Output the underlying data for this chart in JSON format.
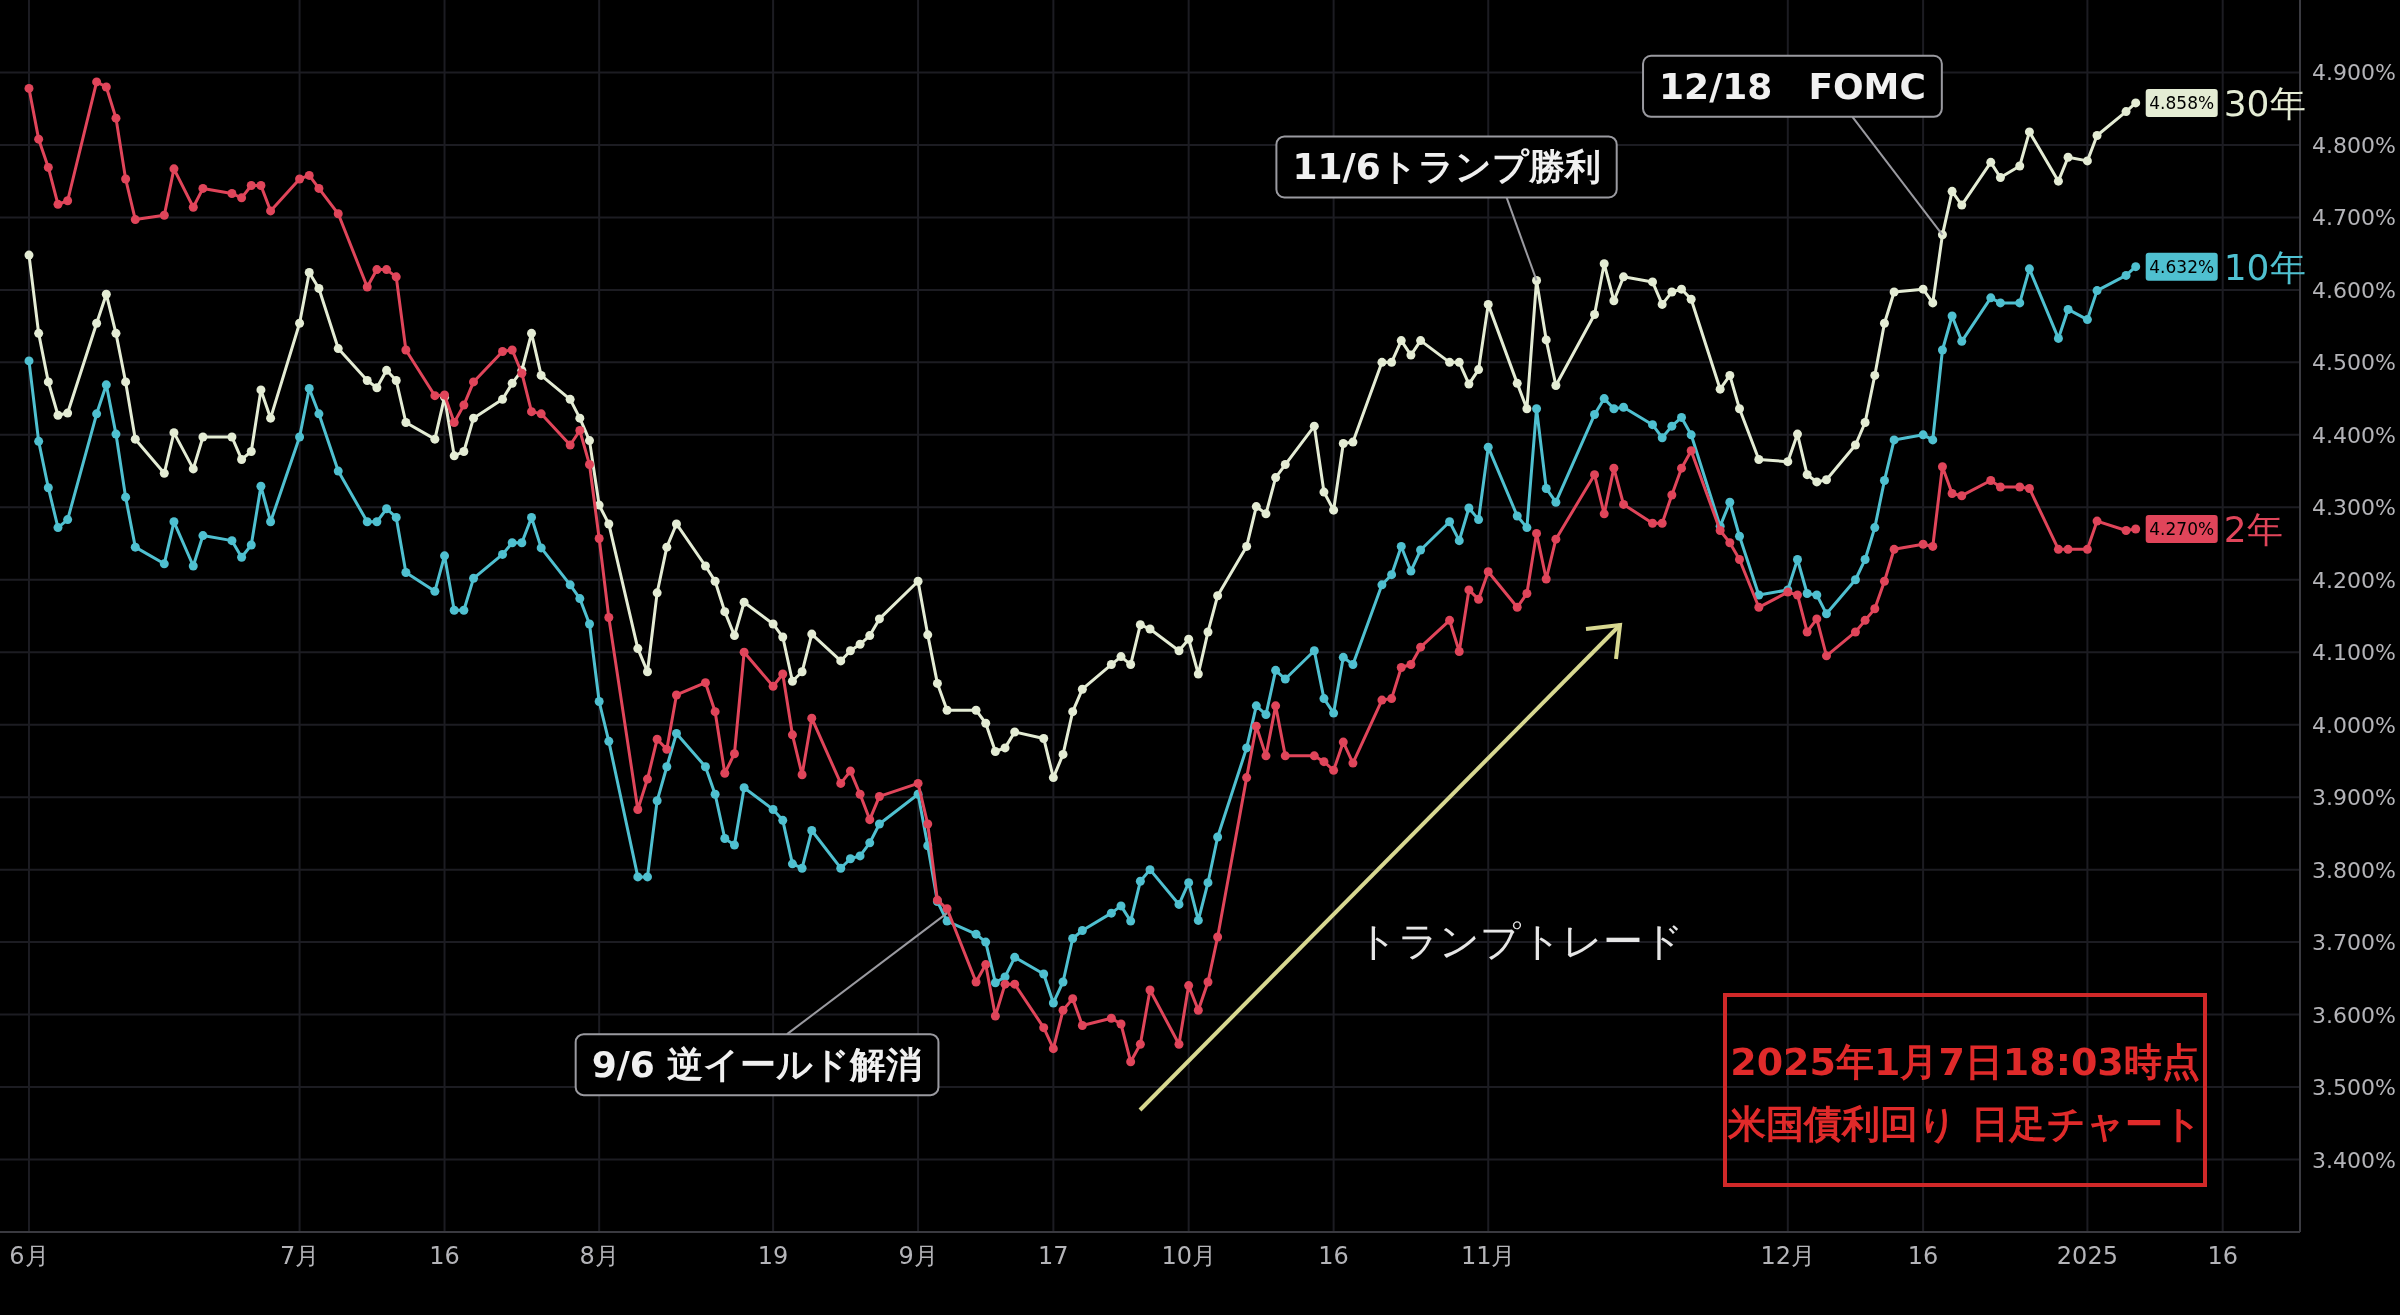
{
  "chart_data": {
    "type": "line",
    "marker": "circle",
    "grid": true,
    "legend": "right",
    "xlim": [
      "2024-05-31",
      "2025-01-24"
    ],
    "xticks": [
      {
        "value": "2024-06-03",
        "label": "6月"
      },
      {
        "value": "2024-07-01",
        "label": "7月"
      },
      {
        "value": "2024-07-16",
        "label": "16"
      },
      {
        "value": "2024-08-01",
        "label": "8月"
      },
      {
        "value": "2024-08-19",
        "label": "19"
      },
      {
        "value": "2024-09-03",
        "label": "9月"
      },
      {
        "value": "2024-09-17",
        "label": "17"
      },
      {
        "value": "2024-10-01",
        "label": "10月"
      },
      {
        "value": "2024-10-16",
        "label": "16"
      },
      {
        "value": "2024-11-01",
        "label": "11月"
      },
      {
        "value": "2024-12-02",
        "label": "12月"
      },
      {
        "value": "2024-12-16",
        "label": "16"
      },
      {
        "value": "2025-01-02",
        "label": "2025"
      },
      {
        "value": "2025-01-16",
        "label": "16"
      }
    ],
    "ylim": [
      3.3,
      5.0
    ],
    "yticks": [
      {
        "value": 3.4,
        "label": "3.400%"
      },
      {
        "value": 3.5,
        "label": "3.500%"
      },
      {
        "value": 3.6,
        "label": "3.600%"
      },
      {
        "value": 3.7,
        "label": "3.700%"
      },
      {
        "value": 3.8,
        "label": "3.800%"
      },
      {
        "value": 3.9,
        "label": "3.900%"
      },
      {
        "value": 4.0,
        "label": "4.000%"
      },
      {
        "value": 4.1,
        "label": "4.100%"
      },
      {
        "value": 4.2,
        "label": "4.200%"
      },
      {
        "value": 4.3,
        "label": "4.300%"
      },
      {
        "value": 4.4,
        "label": "4.400%"
      },
      {
        "value": 4.5,
        "label": "4.500%"
      },
      {
        "value": 4.6,
        "label": "4.600%"
      },
      {
        "value": 4.7,
        "label": "4.700%"
      },
      {
        "value": 4.8,
        "label": "4.800%"
      },
      {
        "value": 4.9,
        "label": "4.900%"
      }
    ],
    "x": [
      "2024-06-03",
      "2024-06-04",
      "2024-06-05",
      "2024-06-06",
      "2024-06-07",
      "2024-06-10",
      "2024-06-11",
      "2024-06-12",
      "2024-06-13",
      "2024-06-14",
      "2024-06-17",
      "2024-06-18",
      "2024-06-20",
      "2024-06-21",
      "2024-06-24",
      "2024-06-25",
      "2024-06-26",
      "2024-06-27",
      "2024-06-28",
      "2024-07-01",
      "2024-07-02",
      "2024-07-03",
      "2024-07-05",
      "2024-07-08",
      "2024-07-09",
      "2024-07-10",
      "2024-07-11",
      "2024-07-12",
      "2024-07-15",
      "2024-07-16",
      "2024-07-17",
      "2024-07-18",
      "2024-07-19",
      "2024-07-22",
      "2024-07-23",
      "2024-07-24",
      "2024-07-25",
      "2024-07-26",
      "2024-07-29",
      "2024-07-30",
      "2024-07-31",
      "2024-08-01",
      "2024-08-02",
      "2024-08-05",
      "2024-08-06",
      "2024-08-07",
      "2024-08-08",
      "2024-08-09",
      "2024-08-12",
      "2024-08-13",
      "2024-08-14",
      "2024-08-15",
      "2024-08-16",
      "2024-08-19",
      "2024-08-20",
      "2024-08-21",
      "2024-08-22",
      "2024-08-23",
      "2024-08-26",
      "2024-08-27",
      "2024-08-28",
      "2024-08-29",
      "2024-08-30",
      "2024-09-03",
      "2024-09-04",
      "2024-09-05",
      "2024-09-06",
      "2024-09-09",
      "2024-09-10",
      "2024-09-11",
      "2024-09-12",
      "2024-09-13",
      "2024-09-16",
      "2024-09-17",
      "2024-09-18",
      "2024-09-19",
      "2024-09-20",
      "2024-09-23",
      "2024-09-24",
      "2024-09-25",
      "2024-09-26",
      "2024-09-27",
      "2024-09-30",
      "2024-10-01",
      "2024-10-02",
      "2024-10-03",
      "2024-10-04",
      "2024-10-07",
      "2024-10-08",
      "2024-10-09",
      "2024-10-10",
      "2024-10-11",
      "2024-10-14",
      "2024-10-15",
      "2024-10-16",
      "2024-10-17",
      "2024-10-18",
      "2024-10-21",
      "2024-10-22",
      "2024-10-23",
      "2024-10-24",
      "2024-10-25",
      "2024-10-28",
      "2024-10-29",
      "2024-10-30",
      "2024-10-31",
      "2024-11-01",
      "2024-11-04",
      "2024-11-05",
      "2024-11-06",
      "2024-11-07",
      "2024-11-08",
      "2024-11-12",
      "2024-11-13",
      "2024-11-14",
      "2024-11-15",
      "2024-11-18",
      "2024-11-19",
      "2024-11-20",
      "2024-11-21",
      "2024-11-22",
      "2024-11-25",
      "2024-11-26",
      "2024-11-27",
      "2024-11-29",
      "2024-12-02",
      "2024-12-03",
      "2024-12-04",
      "2024-12-05",
      "2024-12-06",
      "2024-12-09",
      "2024-12-10",
      "2024-12-11",
      "2024-12-12",
      "2024-12-13",
      "2024-12-16",
      "2024-12-17",
      "2024-12-18",
      "2024-12-19",
      "2024-12-20",
      "2024-12-23",
      "2024-12-24",
      "2024-12-26",
      "2024-12-27",
      "2024-12-30",
      "2024-12-31",
      "2025-01-02",
      "2025-01-03",
      "2025-01-06",
      "2025-01-07"
    ],
    "series": [
      {
        "name": "30年",
        "color": "#e4ecd4",
        "value_labels": [
          null,
          null,
          null,
          null,
          null,
          null,
          null,
          null,
          null,
          null,
          null,
          null,
          null,
          null,
          null,
          null,
          null,
          null,
          null,
          null,
          null,
          null,
          null,
          null,
          null,
          null,
          null,
          null,
          null,
          null,
          null,
          null,
          null,
          null,
          null,
          null,
          null,
          null,
          null,
          null,
          null,
          null,
          null,
          null,
          null,
          null,
          null,
          null,
          null,
          null,
          null,
          null,
          null,
          null,
          null,
          null,
          null,
          null,
          null,
          null,
          null,
          null,
          null,
          null,
          null,
          null,
          null,
          null,
          null,
          null,
          null,
          null,
          null,
          null,
          null,
          null,
          null,
          null,
          null,
          null,
          null,
          null,
          null,
          null,
          null,
          null,
          null,
          null,
          null,
          null,
          null,
          null,
          null,
          null,
          null,
          null,
          null,
          null,
          null,
          null,
          null,
          null,
          null,
          null,
          null,
          null,
          null,
          null,
          null,
          null,
          null,
          null,
          null,
          null,
          null,
          null,
          null,
          null,
          null,
          null,
          null,
          null,
          null,
          null,
          null,
          null,
          null,
          null,
          null,
          null,
          null,
          null,
          null,
          null,
          null,
          null,
          null,
          null,
          null,
          null,
          null,
          null,
          null,
          null,
          null,
          null,
          null,
          null,
          null,
          "4.858%"
        ],
        "values": [
          4.648,
          4.54,
          4.473,
          4.427,
          4.43,
          4.554,
          4.594,
          4.54,
          4.473,
          4.394,
          4.347,
          4.403,
          4.353,
          4.397,
          4.397,
          4.366,
          4.377,
          4.462,
          4.423,
          4.554,
          4.624,
          4.602,
          4.519,
          4.475,
          4.465,
          4.489,
          4.475,
          4.417,
          4.394,
          4.452,
          4.371,
          4.377,
          4.423,
          4.449,
          4.471,
          4.489,
          4.54,
          4.482,
          4.449,
          4.423,
          4.392,
          4.303,
          4.277,
          4.105,
          4.073,
          4.182,
          4.245,
          4.277,
          4.219,
          4.198,
          4.156,
          4.123,
          4.169,
          4.139,
          4.121,
          4.06,
          4.073,
          4.125,
          4.088,
          4.102,
          4.111,
          4.123,
          4.146,
          4.198,
          4.124,
          4.057,
          4.02,
          4.02,
          4.002,
          3.963,
          3.968,
          3.99,
          3.981,
          3.927,
          3.959,
          4.018,
          4.049,
          4.083,
          4.094,
          4.083,
          4.138,
          4.132,
          4.102,
          4.118,
          4.07,
          4.128,
          4.178,
          4.246,
          4.301,
          4.291,
          4.341,
          4.359,
          4.412,
          4.321,
          4.296,
          4.388,
          4.39,
          4.5,
          4.5,
          4.53,
          4.51,
          4.53,
          4.5,
          4.5,
          4.47,
          4.49,
          4.58,
          4.471,
          4.436,
          4.613,
          4.531,
          4.468,
          4.566,
          4.636,
          4.585,
          4.618,
          4.611,
          4.58,
          4.597,
          4.601,
          4.587,
          4.463,
          4.482,
          4.436,
          4.366,
          4.363,
          4.401,
          4.345,
          4.335,
          4.338,
          4.386,
          4.417,
          4.482,
          4.554,
          4.597,
          4.601,
          4.582,
          4.676,
          4.736,
          4.717,
          4.776,
          4.755,
          4.771,
          4.818,
          4.75,
          4.783,
          4.778,
          4.813,
          4.846,
          4.858
        ]
      },
      {
        "name": "10年",
        "color": "#4fc0d0",
        "value_labels": [
          null,
          null,
          null,
          null,
          null,
          null,
          null,
          null,
          null,
          null,
          null,
          null,
          null,
          null,
          null,
          null,
          null,
          null,
          null,
          null,
          null,
          null,
          null,
          null,
          null,
          null,
          null,
          null,
          null,
          null,
          null,
          null,
          null,
          null,
          null,
          null,
          null,
          null,
          null,
          null,
          null,
          null,
          null,
          null,
          null,
          null,
          null,
          null,
          null,
          null,
          null,
          null,
          null,
          null,
          null,
          null,
          null,
          null,
          null,
          null,
          null,
          null,
          null,
          null,
          null,
          null,
          null,
          null,
          null,
          null,
          null,
          null,
          null,
          null,
          null,
          null,
          null,
          null,
          null,
          null,
          null,
          null,
          null,
          null,
          null,
          null,
          null,
          null,
          null,
          null,
          null,
          null,
          null,
          null,
          null,
          null,
          null,
          null,
          null,
          null,
          null,
          null,
          null,
          null,
          null,
          null,
          null,
          null,
          null,
          null,
          null,
          null,
          null,
          null,
          null,
          null,
          null,
          null,
          null,
          null,
          null,
          null,
          null,
          null,
          null,
          null,
          null,
          null,
          null,
          null,
          null,
          null,
          null,
          null,
          null,
          null,
          null,
          null,
          null,
          null,
          null,
          null,
          null,
          null,
          null,
          null,
          null,
          null,
          null,
          "4.632%"
        ],
        "values": [
          4.502,
          4.391,
          4.327,
          4.272,
          4.283,
          4.429,
          4.469,
          4.401,
          4.314,
          4.245,
          4.222,
          4.28,
          4.219,
          4.261,
          4.254,
          4.231,
          4.248,
          4.329,
          4.28,
          4.397,
          4.464,
          4.429,
          4.35,
          4.28,
          4.28,
          4.298,
          4.286,
          4.21,
          4.184,
          4.233,
          4.158,
          4.158,
          4.202,
          4.235,
          4.251,
          4.251,
          4.286,
          4.244,
          4.193,
          4.174,
          4.139,
          4.032,
          3.977,
          3.79,
          3.79,
          3.895,
          3.942,
          3.988,
          3.942,
          3.904,
          3.843,
          3.834,
          3.913,
          3.883,
          3.868,
          3.808,
          3.802,
          3.854,
          3.802,
          3.815,
          3.819,
          3.837,
          3.863,
          3.904,
          3.833,
          3.756,
          3.729,
          3.711,
          3.7,
          3.644,
          3.652,
          3.679,
          3.656,
          3.616,
          3.645,
          3.705,
          3.716,
          3.74,
          3.75,
          3.729,
          3.784,
          3.8,
          3.752,
          3.782,
          3.73,
          3.782,
          3.845,
          3.968,
          4.026,
          4.014,
          4.075,
          4.063,
          4.102,
          4.036,
          4.016,
          4.093,
          4.083,
          4.193,
          4.207,
          4.246,
          4.212,
          4.241,
          4.28,
          4.254,
          4.299,
          4.283,
          4.383,
          4.288,
          4.272,
          4.436,
          4.326,
          4.307,
          4.428,
          4.45,
          4.436,
          4.438,
          4.414,
          4.396,
          4.412,
          4.424,
          4.4,
          4.274,
          4.307,
          4.26,
          4.179,
          4.186,
          4.228,
          4.181,
          4.179,
          4.153,
          4.2,
          4.228,
          4.272,
          4.337,
          4.393,
          4.4,
          4.393,
          4.517,
          4.564,
          4.529,
          4.589,
          4.582,
          4.582,
          4.629,
          4.533,
          4.573,
          4.559,
          4.599,
          4.62,
          4.632
        ]
      },
      {
        "name": "2年",
        "color": "#e0455a",
        "value_labels": [
          null,
          null,
          null,
          null,
          null,
          null,
          null,
          null,
          null,
          null,
          null,
          null,
          null,
          null,
          null,
          null,
          null,
          null,
          null,
          null,
          null,
          null,
          null,
          null,
          null,
          null,
          null,
          null,
          null,
          null,
          null,
          null,
          null,
          null,
          null,
          null,
          null,
          null,
          null,
          null,
          null,
          null,
          null,
          null,
          null,
          null,
          null,
          null,
          null,
          null,
          null,
          null,
          null,
          null,
          null,
          null,
          null,
          null,
          null,
          null,
          null,
          null,
          null,
          null,
          null,
          null,
          null,
          null,
          null,
          null,
          null,
          null,
          null,
          null,
          null,
          null,
          null,
          null,
          null,
          null,
          null,
          null,
          null,
          null,
          null,
          null,
          null,
          null,
          null,
          null,
          null,
          null,
          null,
          null,
          null,
          null,
          null,
          null,
          null,
          null,
          null,
          null,
          null,
          null,
          null,
          null,
          null,
          null,
          null,
          null,
          null,
          null,
          null,
          null,
          null,
          null,
          null,
          null,
          null,
          null,
          null,
          null,
          null,
          null,
          null,
          null,
          null,
          null,
          null,
          null,
          null,
          null,
          null,
          null,
          null,
          null,
          null,
          null,
          null,
          null,
          null,
          null,
          null,
          null,
          null,
          null,
          null,
          null,
          null,
          "4.270%"
        ],
        "values": [
          4.878,
          4.808,
          4.769,
          4.718,
          4.723,
          4.887,
          4.88,
          4.837,
          4.753,
          4.697,
          4.703,
          4.767,
          4.714,
          4.74,
          4.733,
          4.727,
          4.744,
          4.744,
          4.709,
          4.753,
          4.758,
          4.74,
          4.705,
          4.604,
          4.628,
          4.628,
          4.618,
          4.517,
          4.454,
          4.455,
          4.417,
          4.441,
          4.473,
          4.515,
          4.517,
          4.485,
          4.432,
          4.429,
          4.386,
          4.406,
          4.359,
          4.257,
          4.148,
          3.883,
          3.925,
          3.98,
          3.966,
          4.041,
          4.058,
          4.018,
          3.933,
          3.96,
          4.1,
          4.053,
          4.07,
          3.986,
          3.931,
          4.009,
          3.919,
          3.936,
          3.904,
          3.869,
          3.901,
          3.919,
          3.863,
          3.758,
          3.746,
          3.645,
          3.669,
          3.598,
          3.642,
          3.642,
          3.582,
          3.553,
          3.606,
          3.622,
          3.585,
          3.595,
          3.587,
          3.535,
          3.559,
          3.634,
          3.559,
          3.64,
          3.606,
          3.645,
          3.707,
          3.927,
          3.998,
          3.957,
          4.026,
          3.957,
          3.957,
          3.949,
          3.937,
          3.976,
          3.947,
          4.034,
          4.036,
          4.079,
          4.083,
          4.107,
          4.144,
          4.101,
          4.186,
          4.173,
          4.211,
          4.162,
          4.181,
          4.264,
          4.201,
          4.256,
          4.345,
          4.291,
          4.354,
          4.304,
          4.278,
          4.278,
          4.317,
          4.354,
          4.378,
          4.268,
          4.251,
          4.228,
          4.162,
          4.183,
          4.179,
          4.128,
          4.146,
          4.095,
          4.128,
          4.144,
          4.16,
          4.198,
          4.242,
          4.249,
          4.246,
          4.356,
          4.319,
          4.316,
          4.337,
          4.328,
          4.328,
          4.326,
          4.242,
          4.242,
          4.242,
          4.281,
          4.268,
          4.27
        ]
      }
    ],
    "annotations": [
      {
        "text": "9/6 逆イールド解消",
        "x": "2024-09-06",
        "y": 3.74
      },
      {
        "text": "11/6トランプ勝利",
        "x": "2024-11-06",
        "y": 4.613
      },
      {
        "text": "12/18　FOMC",
        "x": "2024-12-18",
        "y": 4.676
      },
      "トランプトレード",
      "2025年1月7日18:03時点",
      "米国債利回り 日足チャート"
    ]
  }
}
